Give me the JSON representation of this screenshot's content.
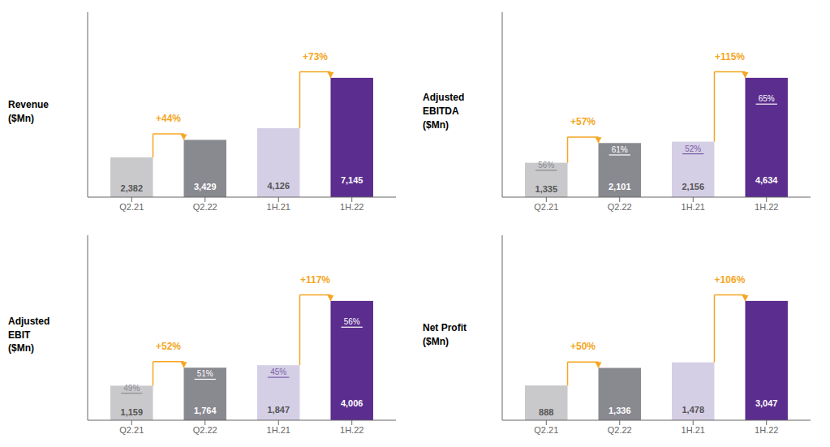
{
  "chart_data": [
    {
      "type": "bar",
      "title": "Revenue\n($Mn)",
      "categories": [
        "Q2.21",
        "Q2.22",
        "1H.21",
        "1H.22"
      ],
      "values": [
        2382,
        3429,
        4126,
        7145
      ],
      "value_labels": [
        "2,382",
        "3,429",
        "4,126",
        "7,145"
      ],
      "data_labels": true,
      "colors": [
        "#c9c9cb",
        "#898990",
        "#d5cfe6",
        "#5b2d8e"
      ],
      "ylim": [
        0,
        11074.75
      ],
      "yticks": [],
      "tick_labels": "x",
      "growth": [
        {
          "from": "Q2.21",
          "to": "Q2.22",
          "label": "+44%",
          "color": "#f5a623"
        },
        {
          "from": "1H.21",
          "to": "1H.22",
          "label": "+73%",
          "color": "#f5a623"
        }
      ]
    },
    {
      "type": "bar",
      "title": "Adjusted\nEBITDA\n($Mn)",
      "categories": [
        "Q2.21",
        "Q2.22",
        "1H.21",
        "1H.22"
      ],
      "values": [
        1335,
        2101,
        2156,
        4634
      ],
      "value_labels": [
        "1,335",
        "2,101",
        "2,156",
        "4,634"
      ],
      "data_labels": true,
      "colors": [
        "#c9c9cb",
        "#898990",
        "#d5cfe6",
        "#5b2d8e"
      ],
      "ylim": [
        0,
        7182.7
      ],
      "yticks": [],
      "tick_labels": "x",
      "margins": {
        "labels": [
          "56%",
          "61%",
          "52%",
          "65%"
        ],
        "colors": [
          "#898990",
          "#ffffff",
          "#7b5ea7",
          "#ffffff"
        ]
      },
      "growth": [
        {
          "from": "Q2.21",
          "to": "Q2.22",
          "label": "+57%",
          "color": "#f5a623"
        },
        {
          "from": "1H.21",
          "to": "1H.22",
          "label": "+115%",
          "color": "#f5a623"
        }
      ]
    },
    {
      "type": "bar",
      "title": "Adjusted\nEBIT\n($Mn)",
      "categories": [
        "Q2.21",
        "Q2.22",
        "1H.21",
        "1H.22"
      ],
      "values": [
        1159,
        1764,
        1847,
        4006
      ],
      "value_labels": [
        "1,159",
        "1,764",
        "1,847",
        "4,006"
      ],
      "data_labels": true,
      "colors": [
        "#c9c9cb",
        "#898990",
        "#d5cfe6",
        "#5b2d8e"
      ],
      "ylim": [
        0,
        6209.3
      ],
      "yticks": [],
      "tick_labels": "x",
      "margins": {
        "labels": [
          "49%",
          "51%",
          "45%",
          "56%"
        ],
        "colors": [
          "#898990",
          "#ffffff",
          "#7b5ea7",
          "#ffffff"
        ]
      },
      "growth": [
        {
          "from": "Q2.21",
          "to": "Q2.22",
          "label": "+52%",
          "color": "#f5a623"
        },
        {
          "from": "1H.21",
          "to": "1H.22",
          "label": "+117%",
          "color": "#f5a623"
        }
      ]
    },
    {
      "type": "bar",
      "title": "Net Profit\n($Mn)",
      "categories": [
        "Q2.21",
        "Q2.22",
        "1H.21",
        "1H.22"
      ],
      "values": [
        888,
        1336,
        1478,
        3047
      ],
      "value_labels": [
        "888",
        "1,336",
        "1,478",
        "3,047"
      ],
      "data_labels": true,
      "colors": [
        "#c9c9cb",
        "#898990",
        "#d5cfe6",
        "#5b2d8e"
      ],
      "ylim": [
        0,
        4722.85
      ],
      "yticks": [],
      "tick_labels": "x",
      "growth": [
        {
          "from": "Q2.21",
          "to": "Q2.22",
          "label": "+50%",
          "color": "#f5a623"
        },
        {
          "from": "1H.21",
          "to": "1H.22",
          "label": "+106%",
          "color": "#f5a623"
        }
      ]
    }
  ]
}
